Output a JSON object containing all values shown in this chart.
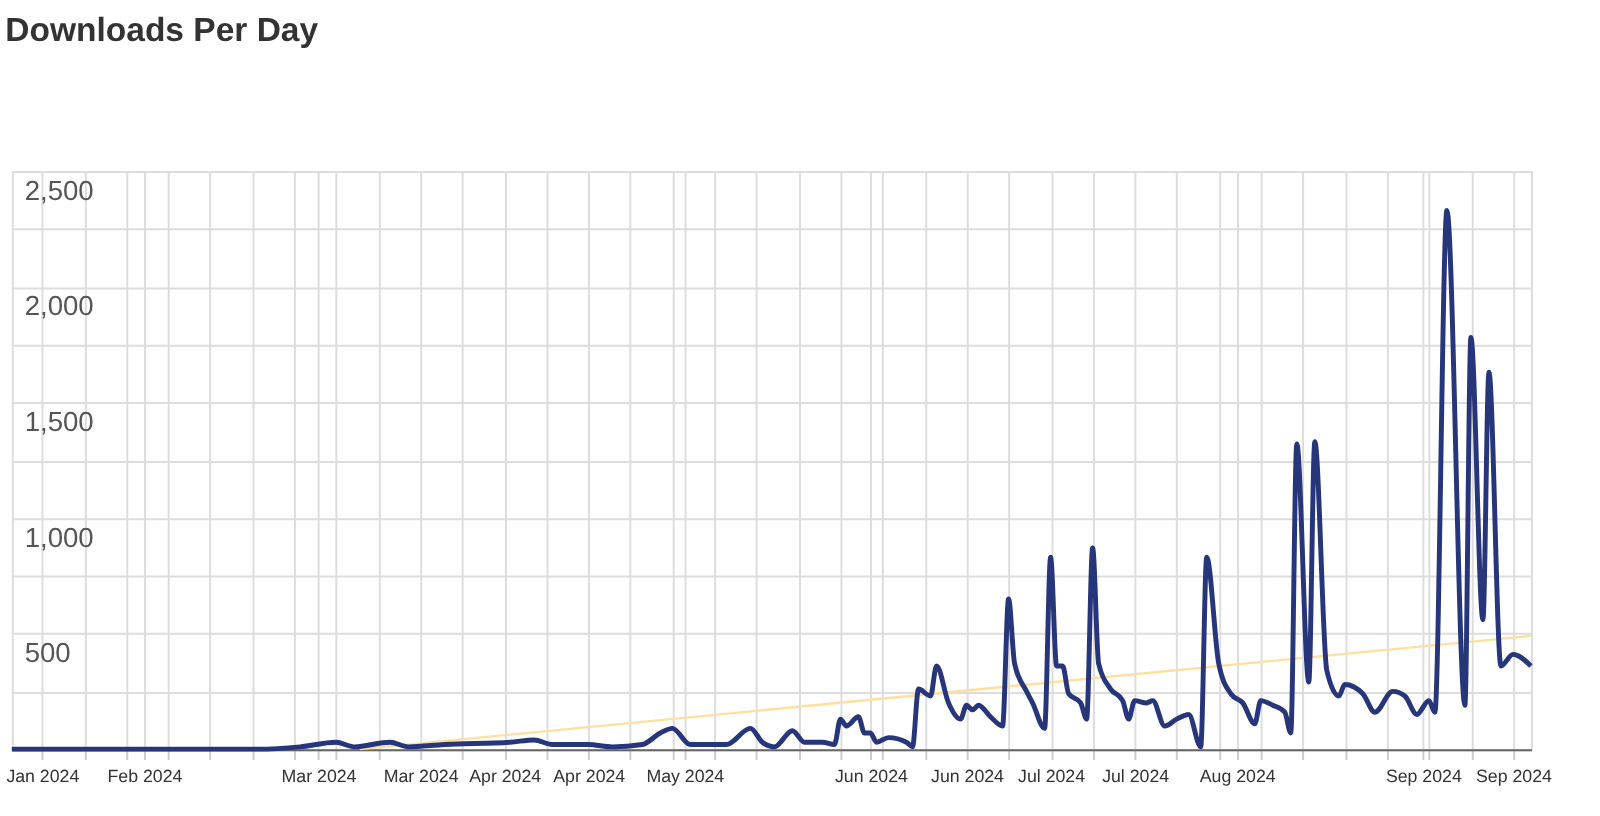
{
  "chart_data": {
    "type": "line",
    "title": "Downloads Per Day",
    "xlim": [
      "2024-01-10",
      "2024-09-19"
    ],
    "xticks": [
      {
        "value": "2024-01-15",
        "label": "Jan 2024"
      },
      {
        "value": "2024-01-22",
        "label": null
      },
      {
        "value": "2024-01-29",
        "label": null
      },
      {
        "value": "2024-02-01",
        "label": "Feb 2024"
      },
      {
        "value": "2024-02-05",
        "label": null
      },
      {
        "value": "2024-02-12",
        "label": null
      },
      {
        "value": "2024-02-19",
        "label": null
      },
      {
        "value": "2024-02-26",
        "label": null
      },
      {
        "value": "2024-03-01",
        "label": "Mar 2024"
      },
      {
        "value": "2024-03-04",
        "label": null
      },
      {
        "value": "2024-03-11",
        "label": null
      },
      {
        "value": "2024-03-18",
        "label": "Mar 2024"
      },
      {
        "value": "2024-03-25",
        "label": null
      },
      {
        "value": "2024-04-01",
        "label": "Apr 2024"
      },
      {
        "value": "2024-04-08",
        "label": null
      },
      {
        "value": "2024-04-15",
        "label": "Apr 2024"
      },
      {
        "value": "2024-04-22",
        "label": null
      },
      {
        "value": "2024-04-29",
        "label": null
      },
      {
        "value": "2024-05-01",
        "label": "May 2024"
      },
      {
        "value": "2024-05-06",
        "label": null
      },
      {
        "value": "2024-05-13",
        "label": null
      },
      {
        "value": "2024-05-20",
        "label": null
      },
      {
        "value": "2024-05-27",
        "label": null
      },
      {
        "value": "2024-06-01",
        "label": "Jun 2024"
      },
      {
        "value": "2024-06-03",
        "label": null
      },
      {
        "value": "2024-06-10",
        "label": null
      },
      {
        "value": "2024-06-17",
        "label": "Jun 2024"
      },
      {
        "value": "2024-06-24",
        "label": null
      },
      {
        "value": "2024-07-01",
        "label": "Jul 2024"
      },
      {
        "value": "2024-07-08",
        "label": null
      },
      {
        "value": "2024-07-15",
        "label": "Jul 2024"
      },
      {
        "value": "2024-07-22",
        "label": null
      },
      {
        "value": "2024-07-29",
        "label": null
      },
      {
        "value": "2024-08-01",
        "label": "Aug 2024"
      },
      {
        "value": "2024-08-05",
        "label": null
      },
      {
        "value": "2024-08-12",
        "label": null
      },
      {
        "value": "2024-08-19",
        "label": null
      },
      {
        "value": "2024-08-26",
        "label": null
      },
      {
        "value": "2024-09-01",
        "label": "Sep 2024"
      },
      {
        "value": "2024-09-02",
        "label": null
      },
      {
        "value": "2024-09-09",
        "label": null
      },
      {
        "value": "2024-09-16",
        "label": "Sep 2024"
      }
    ],
    "ylim": [
      0,
      2500
    ],
    "yticks": [
      {
        "value": 0,
        "label": null
      },
      {
        "value": 250,
        "label": null
      },
      {
        "value": 500,
        "label": "500"
      },
      {
        "value": 750,
        "label": null
      },
      {
        "value": 1000,
        "label": "1,000"
      },
      {
        "value": 1250,
        "label": null
      },
      {
        "value": 1500,
        "label": "1,500"
      },
      {
        "value": 1750,
        "label": null
      },
      {
        "value": 2000,
        "label": "2,000"
      },
      {
        "value": 2250,
        "label": null
      },
      {
        "value": 2500,
        "label": "2,500"
      }
    ],
    "grid": true,
    "marker": "none",
    "line_style": "solid",
    "series": [
      {
        "color": "#27367a",
        "x": [
          "2024-01-10",
          "2024-02-01",
          "2024-02-20",
          "2024-02-27",
          "2024-03-04",
          "2024-03-07",
          "2024-03-13",
          "2024-03-16",
          "2024-03-22",
          "2024-04-02",
          "2024-04-06",
          "2024-04-09",
          "2024-04-15",
          "2024-04-19",
          "2024-04-24",
          "2024-04-27",
          "2024-04-29",
          "2024-05-02",
          "2024-05-08",
          "2024-05-12",
          "2024-05-14",
          "2024-05-16",
          "2024-05-19",
          "2024-05-21",
          "2024-05-24",
          "2024-05-26",
          "2024-05-27",
          "2024-05-28",
          "2024-05-30",
          "2024-05-31",
          "2024-06-01",
          "2024-06-02",
          "2024-06-04",
          "2024-06-07",
          "2024-06-08",
          "2024-06-09",
          "2024-06-11",
          "2024-06-12",
          "2024-06-14",
          "2024-06-16",
          "2024-06-17",
          "2024-06-18",
          "2024-06-19",
          "2024-06-21",
          "2024-06-23",
          "2024-06-24",
          "2024-06-25",
          "2024-06-27",
          "2024-06-28",
          "2024-06-30",
          "2024-07-01",
          "2024-07-02",
          "2024-07-03",
          "2024-07-04",
          "2024-07-06",
          "2024-07-07",
          "2024-07-08",
          "2024-07-09",
          "2024-07-11",
          "2024-07-13",
          "2024-07-14",
          "2024-07-15",
          "2024-07-17",
          "2024-07-18",
          "2024-07-20",
          "2024-07-22",
          "2024-07-24",
          "2024-07-26",
          "2024-07-27",
          "2024-07-29",
          "2024-07-31",
          "2024-08-02",
          "2024-08-04",
          "2024-08-05",
          "2024-08-07",
          "2024-08-09",
          "2024-08-10",
          "2024-08-11",
          "2024-08-13",
          "2024-08-14",
          "2024-08-16",
          "2024-08-18",
          "2024-08-19",
          "2024-08-22",
          "2024-08-24",
          "2024-08-27",
          "2024-08-29",
          "2024-08-31",
          "2024-09-02",
          "2024-09-03",
          "2024-09-05",
          "2024-09-08",
          "2024-09-09",
          "2024-09-11",
          "2024-09-12",
          "2024-09-14",
          "2024-09-16",
          "2024-09-19"
        ],
        "values": [
          0,
          0,
          0,
          10,
          30,
          10,
          30,
          10,
          20,
          30,
          40,
          20,
          20,
          10,
          20,
          70,
          90,
          20,
          20,
          90,
          30,
          10,
          80,
          30,
          30,
          20,
          130,
          100,
          140,
          70,
          70,
          30,
          50,
          30,
          10,
          260,
          230,
          360,
          200,
          130,
          190,
          170,
          190,
          140,
          100,
          650,
          370,
          250,
          200,
          90,
          830,
          360,
          360,
          240,
          200,
          130,
          870,
          370,
          260,
          210,
          130,
          210,
          200,
          210,
          100,
          130,
          150,
          10,
          830,
          370,
          240,
          200,
          110,
          210,
          190,
          160,
          70,
          1320,
          290,
          1330,
          340,
          230,
          280,
          240,
          160,
          250,
          230,
          150,
          210,
          160,
          2330,
          190,
          1780,
          560,
          1630,
          360,
          410,
          360
        ]
      },
      {
        "type": "line",
        "color": "#ffdf9e",
        "x": [
          "2024-03-08",
          "2024-09-19"
        ],
        "values": [
          0,
          490
        ]
      }
    ]
  }
}
